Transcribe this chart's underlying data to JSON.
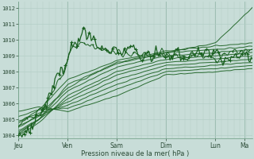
{
  "bg_color": "#c8ddd8",
  "plot_bg_color": "#c8ddd8",
  "grid_minor_color": "#b0ccc4",
  "grid_major_color": "#99bbaf",
  "line_color": "#1a6020",
  "ylabel_ticks": [
    1004,
    1005,
    1006,
    1007,
    1008,
    1009,
    1010,
    1011,
    1012
  ],
  "ymin": 1003.8,
  "ymax": 1012.4,
  "xlabel": "Pression niveau de la mer( hPa )",
  "day_labels": [
    "Jeu",
    "Ven",
    "Sam",
    "Dim",
    "Lun",
    "Ma"
  ],
  "day_positions": [
    0,
    24,
    48,
    72,
    96,
    110
  ],
  "total_hours": 114
}
